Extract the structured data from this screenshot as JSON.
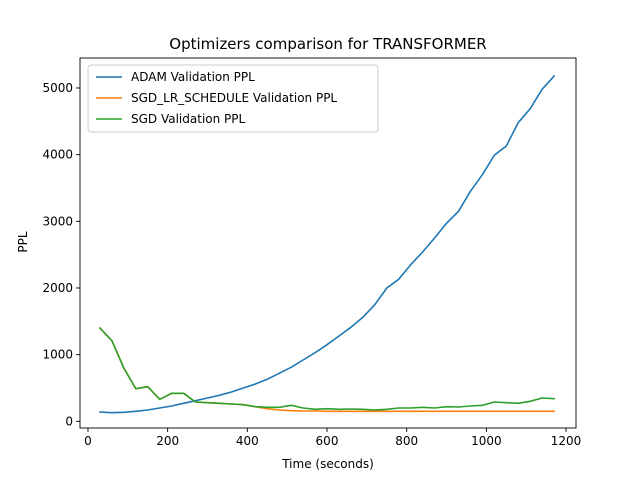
{
  "chart_data": {
    "type": "line",
    "title": "Optimizers comparison for TRANSFORMER",
    "xlabel": "Time (seconds)",
    "ylabel": "PPL",
    "xlim": [
      -20,
      1225
    ],
    "ylim": [
      -100,
      5450
    ],
    "xticks": [
      0,
      200,
      400,
      600,
      800,
      1000,
      1200
    ],
    "xtick_labels": [
      "0",
      "200",
      "400",
      "600",
      "800",
      "1000",
      "1200"
    ],
    "yticks": [
      0,
      1000,
      2000,
      3000,
      4000,
      5000
    ],
    "ytick_labels": [
      "0",
      "1000",
      "2000",
      "3000",
      "4000",
      "5000"
    ],
    "grid": false,
    "legend_position": "top-left",
    "series": [
      {
        "name": "ADAM Validation PPL",
        "color": "#1f77b4",
        "x": [
          30,
          60,
          90,
          120,
          150,
          180,
          210,
          240,
          270,
          300,
          330,
          360,
          390,
          420,
          450,
          480,
          510,
          540,
          570,
          600,
          630,
          660,
          690,
          720,
          750,
          780,
          810,
          840,
          870,
          900,
          930,
          960,
          990,
          1020,
          1050,
          1080,
          1110,
          1140,
          1170
        ],
        "y": [
          140,
          130,
          135,
          150,
          170,
          200,
          230,
          270,
          310,
          350,
          390,
          440,
          500,
          560,
          630,
          720,
          810,
          920,
          1030,
          1150,
          1280,
          1410,
          1560,
          1750,
          2000,
          2130,
          2350,
          2540,
          2750,
          2970,
          3150,
          3450,
          3700,
          3990,
          4130,
          4480,
          4690,
          4980,
          5180
        ]
      },
      {
        "name": "SGD_LR_SCHEDULE Validation PPL",
        "color": "#ff7f0e",
        "x": [
          30,
          60,
          90,
          120,
          150,
          180,
          210,
          240,
          270,
          300,
          330,
          360,
          390,
          420,
          450,
          480,
          510,
          540,
          570,
          600,
          630,
          660,
          690,
          720,
          750,
          780,
          810,
          840,
          870,
          900,
          930,
          960,
          990,
          1020,
          1050,
          1080,
          1110,
          1140,
          1170
        ],
        "y": [
          1400,
          1210,
          800,
          490,
          520,
          330,
          420,
          420,
          290,
          280,
          270,
          260,
          250,
          220,
          190,
          170,
          160,
          155,
          155,
          150,
          150,
          150,
          150,
          150,
          150,
          150,
          150,
          150,
          150,
          150,
          150,
          150,
          150,
          150,
          150,
          150,
          150,
          150,
          150
        ]
      },
      {
        "name": "SGD Validation PPL",
        "color": "#2ca02c",
        "x": [
          30,
          60,
          90,
          120,
          150,
          180,
          210,
          240,
          270,
          300,
          330,
          360,
          390,
          420,
          450,
          480,
          510,
          540,
          570,
          600,
          630,
          660,
          690,
          720,
          750,
          780,
          810,
          840,
          870,
          900,
          930,
          960,
          990,
          1020,
          1050,
          1080,
          1110,
          1140,
          1170
        ],
        "y": [
          1400,
          1210,
          800,
          490,
          520,
          330,
          420,
          420,
          290,
          280,
          270,
          260,
          250,
          220,
          210,
          210,
          240,
          200,
          180,
          190,
          180,
          185,
          180,
          170,
          180,
          200,
          200,
          210,
          200,
          220,
          215,
          230,
          240,
          290,
          280,
          270,
          300,
          350,
          340
        ]
      }
    ]
  }
}
